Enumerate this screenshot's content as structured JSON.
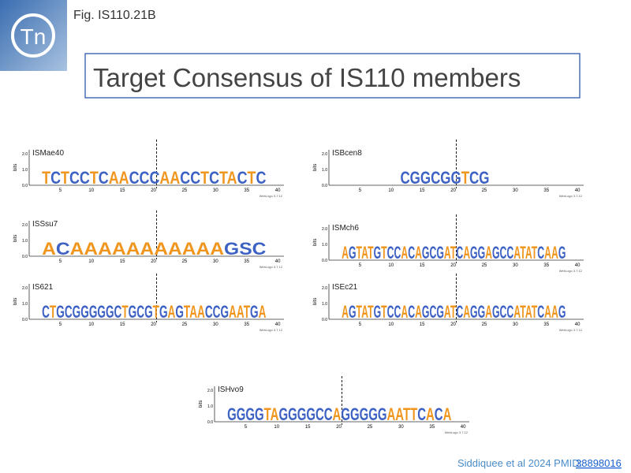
{
  "header": {
    "figure": "Fig. IS110.21B",
    "logo": "Tn",
    "title": "Target Consensus of IS110 members"
  },
  "logo_axis": {
    "y_label": "bits",
    "y_ticks": [
      "0.0",
      "1.0",
      "2.0"
    ],
    "x_ticks": [
      "5",
      "10",
      "15",
      "20",
      "25",
      "30",
      "35",
      "40"
    ],
    "credit": "WebLogo 3.7.12"
  },
  "panels": [
    {
      "label": "ISMae40",
      "sequence": "TCTCCTCAACCCAACCTCTACTC"
    },
    {
      "label": "ISBcen8",
      "sequence": "CGGCGGTCG"
    },
    {
      "label": "ISSsu7",
      "sequence": "ACAAAAAAAAAAAGSC"
    },
    {
      "label": "ISMch6",
      "sequence": "AGTATGTCCACAGCGATCAGGAGCCATATCAAG"
    },
    {
      "label": "IS621",
      "sequence": "CTGCGGGGGCTGCGTGAGTAACCGAATGA"
    },
    {
      "label": "ISEc21",
      "sequence": "AGTATGTCCACAGCGATCAGGAGCCATATCAAG"
    },
    {
      "label": "ISHvo9",
      "sequence": "GGGGTAGGGGCCAGGGGGAATTCACA"
    }
  ],
  "citation": {
    "text": "Siddiquee et al 2024 PMID:",
    "link": "38898016"
  }
}
